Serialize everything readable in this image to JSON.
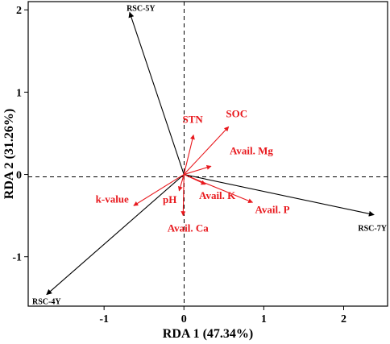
{
  "chart_data": {
    "type": "biplot",
    "xlabel": "RDA 1 (47.34%)",
    "ylabel": "RDA 2 (31.26%)",
    "xlim": [
      -1.95,
      2.55
    ],
    "ylim": [
      -1.6,
      2.1
    ],
    "xticks": [
      -1,
      0,
      1,
      2
    ],
    "yticks": [
      -1,
      0,
      1,
      2
    ],
    "xtick_labels": [
      "-1",
      "0",
      "1",
      "2"
    ],
    "ytick_labels": [
      "-1",
      "0",
      "1",
      "2"
    ],
    "grid": false,
    "reference_lines": {
      "x": 0,
      "y": 0,
      "style": "dashed"
    },
    "series": [
      {
        "name": "sites",
        "color": "#000000",
        "vectors": [
          {
            "label": "RSC-5Y",
            "x": -0.68,
            "y": 1.97
          },
          {
            "label": "RSC-7Y",
            "x": 2.38,
            "y": -0.49
          },
          {
            "label": "RSC-4Y",
            "x": -1.72,
            "y": -1.46
          }
        ]
      },
      {
        "name": "environmental variables",
        "color": "#e8191e",
        "vectors": [
          {
            "label": "STN",
            "x": 0.12,
            "y": 0.48
          },
          {
            "label": "SOC",
            "x": 0.56,
            "y": 0.58
          },
          {
            "label": "Avail. Mg",
            "x": 0.34,
            "y": 0.1
          },
          {
            "label": "Avail. K",
            "x": 0.27,
            "y": -0.12
          },
          {
            "label": "Avail. P",
            "x": 0.86,
            "y": -0.34
          },
          {
            "label": "k-value",
            "x": -0.63,
            "y": -0.38
          },
          {
            "label": "pH",
            "x": -0.06,
            "y": -0.2
          },
          {
            "label": "Avail. Ca",
            "x": -0.01,
            "y": -0.5
          }
        ]
      }
    ]
  }
}
